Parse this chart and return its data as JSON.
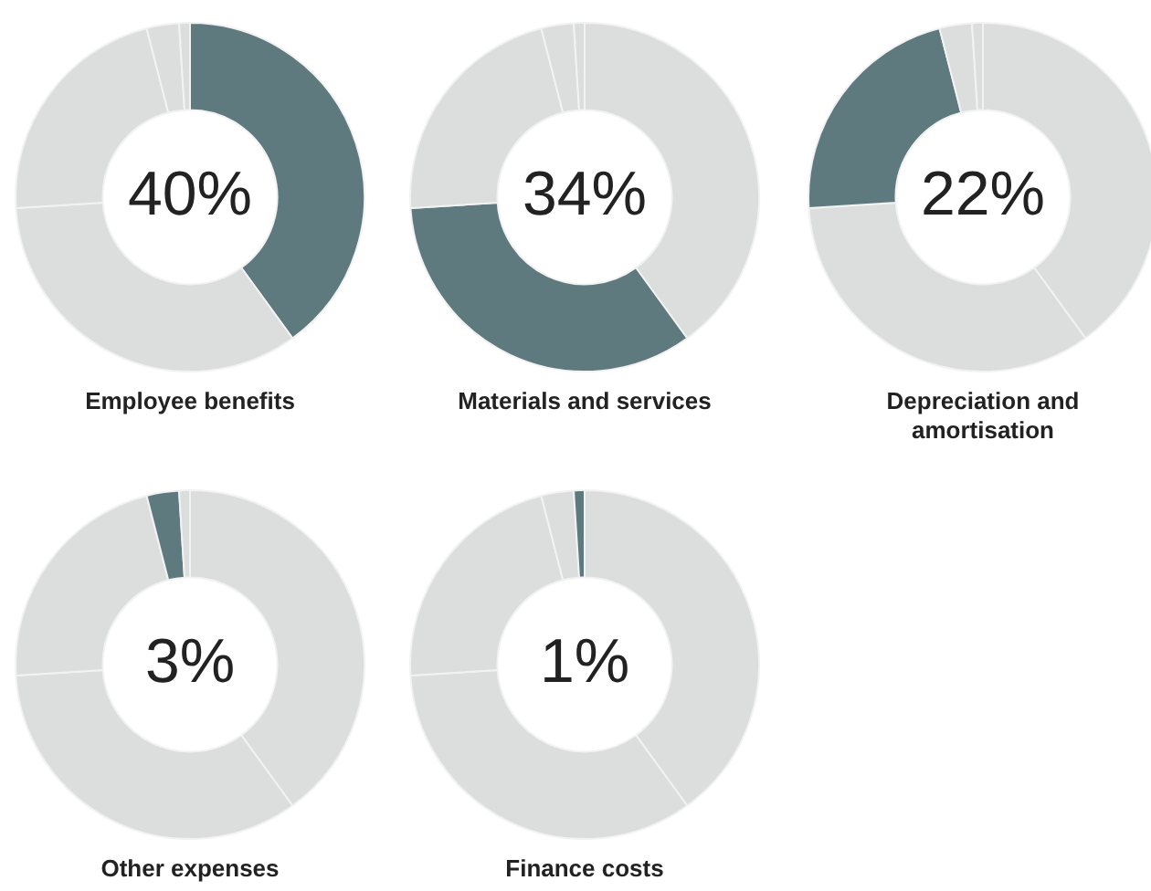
{
  "chart_data": [
    {
      "type": "donut",
      "title": "Employee benefits",
      "categories": [
        null,
        null,
        null,
        null,
        null
      ],
      "values": [
        40,
        34,
        22,
        3,
        1
      ],
      "colors": [
        "#5f7a7e",
        "#dcdddd",
        "#dcdddd",
        "#dcdddd",
        "#dcdddd"
      ],
      "annotations": [
        "40%"
      ],
      "legend": false
    },
    {
      "type": "donut",
      "title": "Materials and services",
      "categories": [
        null,
        null,
        null,
        null,
        null
      ],
      "values": [
        40,
        34,
        22,
        3,
        1
      ],
      "colors": [
        "#dcdddd",
        "#5f7a7e",
        "#dcdddd",
        "#dcdddd",
        "#dcdddd"
      ],
      "annotations": [
        "34%"
      ],
      "legend": false
    },
    {
      "type": "donut",
      "title": "Depreciation and amortisation",
      "categories": [
        null,
        null,
        null,
        null,
        null
      ],
      "values": [
        40,
        34,
        22,
        3,
        1
      ],
      "colors": [
        "#dcdddd",
        "#dcdddd",
        "#5f7a7e",
        "#dcdddd",
        "#dcdddd"
      ],
      "annotations": [
        "22%"
      ],
      "legend": false
    },
    {
      "type": "donut",
      "title": "Other expenses",
      "categories": [
        null,
        null,
        null,
        null,
        null
      ],
      "values": [
        40,
        34,
        22,
        3,
        1
      ],
      "colors": [
        "#dcdddd",
        "#dcdddd",
        "#dcdddd",
        "#5f7a7e",
        "#dcdddd"
      ],
      "annotations": [
        "3%"
      ],
      "legend": false
    },
    {
      "type": "donut",
      "title": "Finance costs",
      "categories": [
        null,
        null,
        null,
        null,
        null
      ],
      "values": [
        40,
        34,
        22,
        3,
        1
      ],
      "colors": [
        "#dcdddd",
        "#dcdddd",
        "#dcdddd",
        "#dcdddd",
        "#5f7a7e"
      ],
      "annotations": [
        "1%"
      ],
      "legend": false
    }
  ]
}
